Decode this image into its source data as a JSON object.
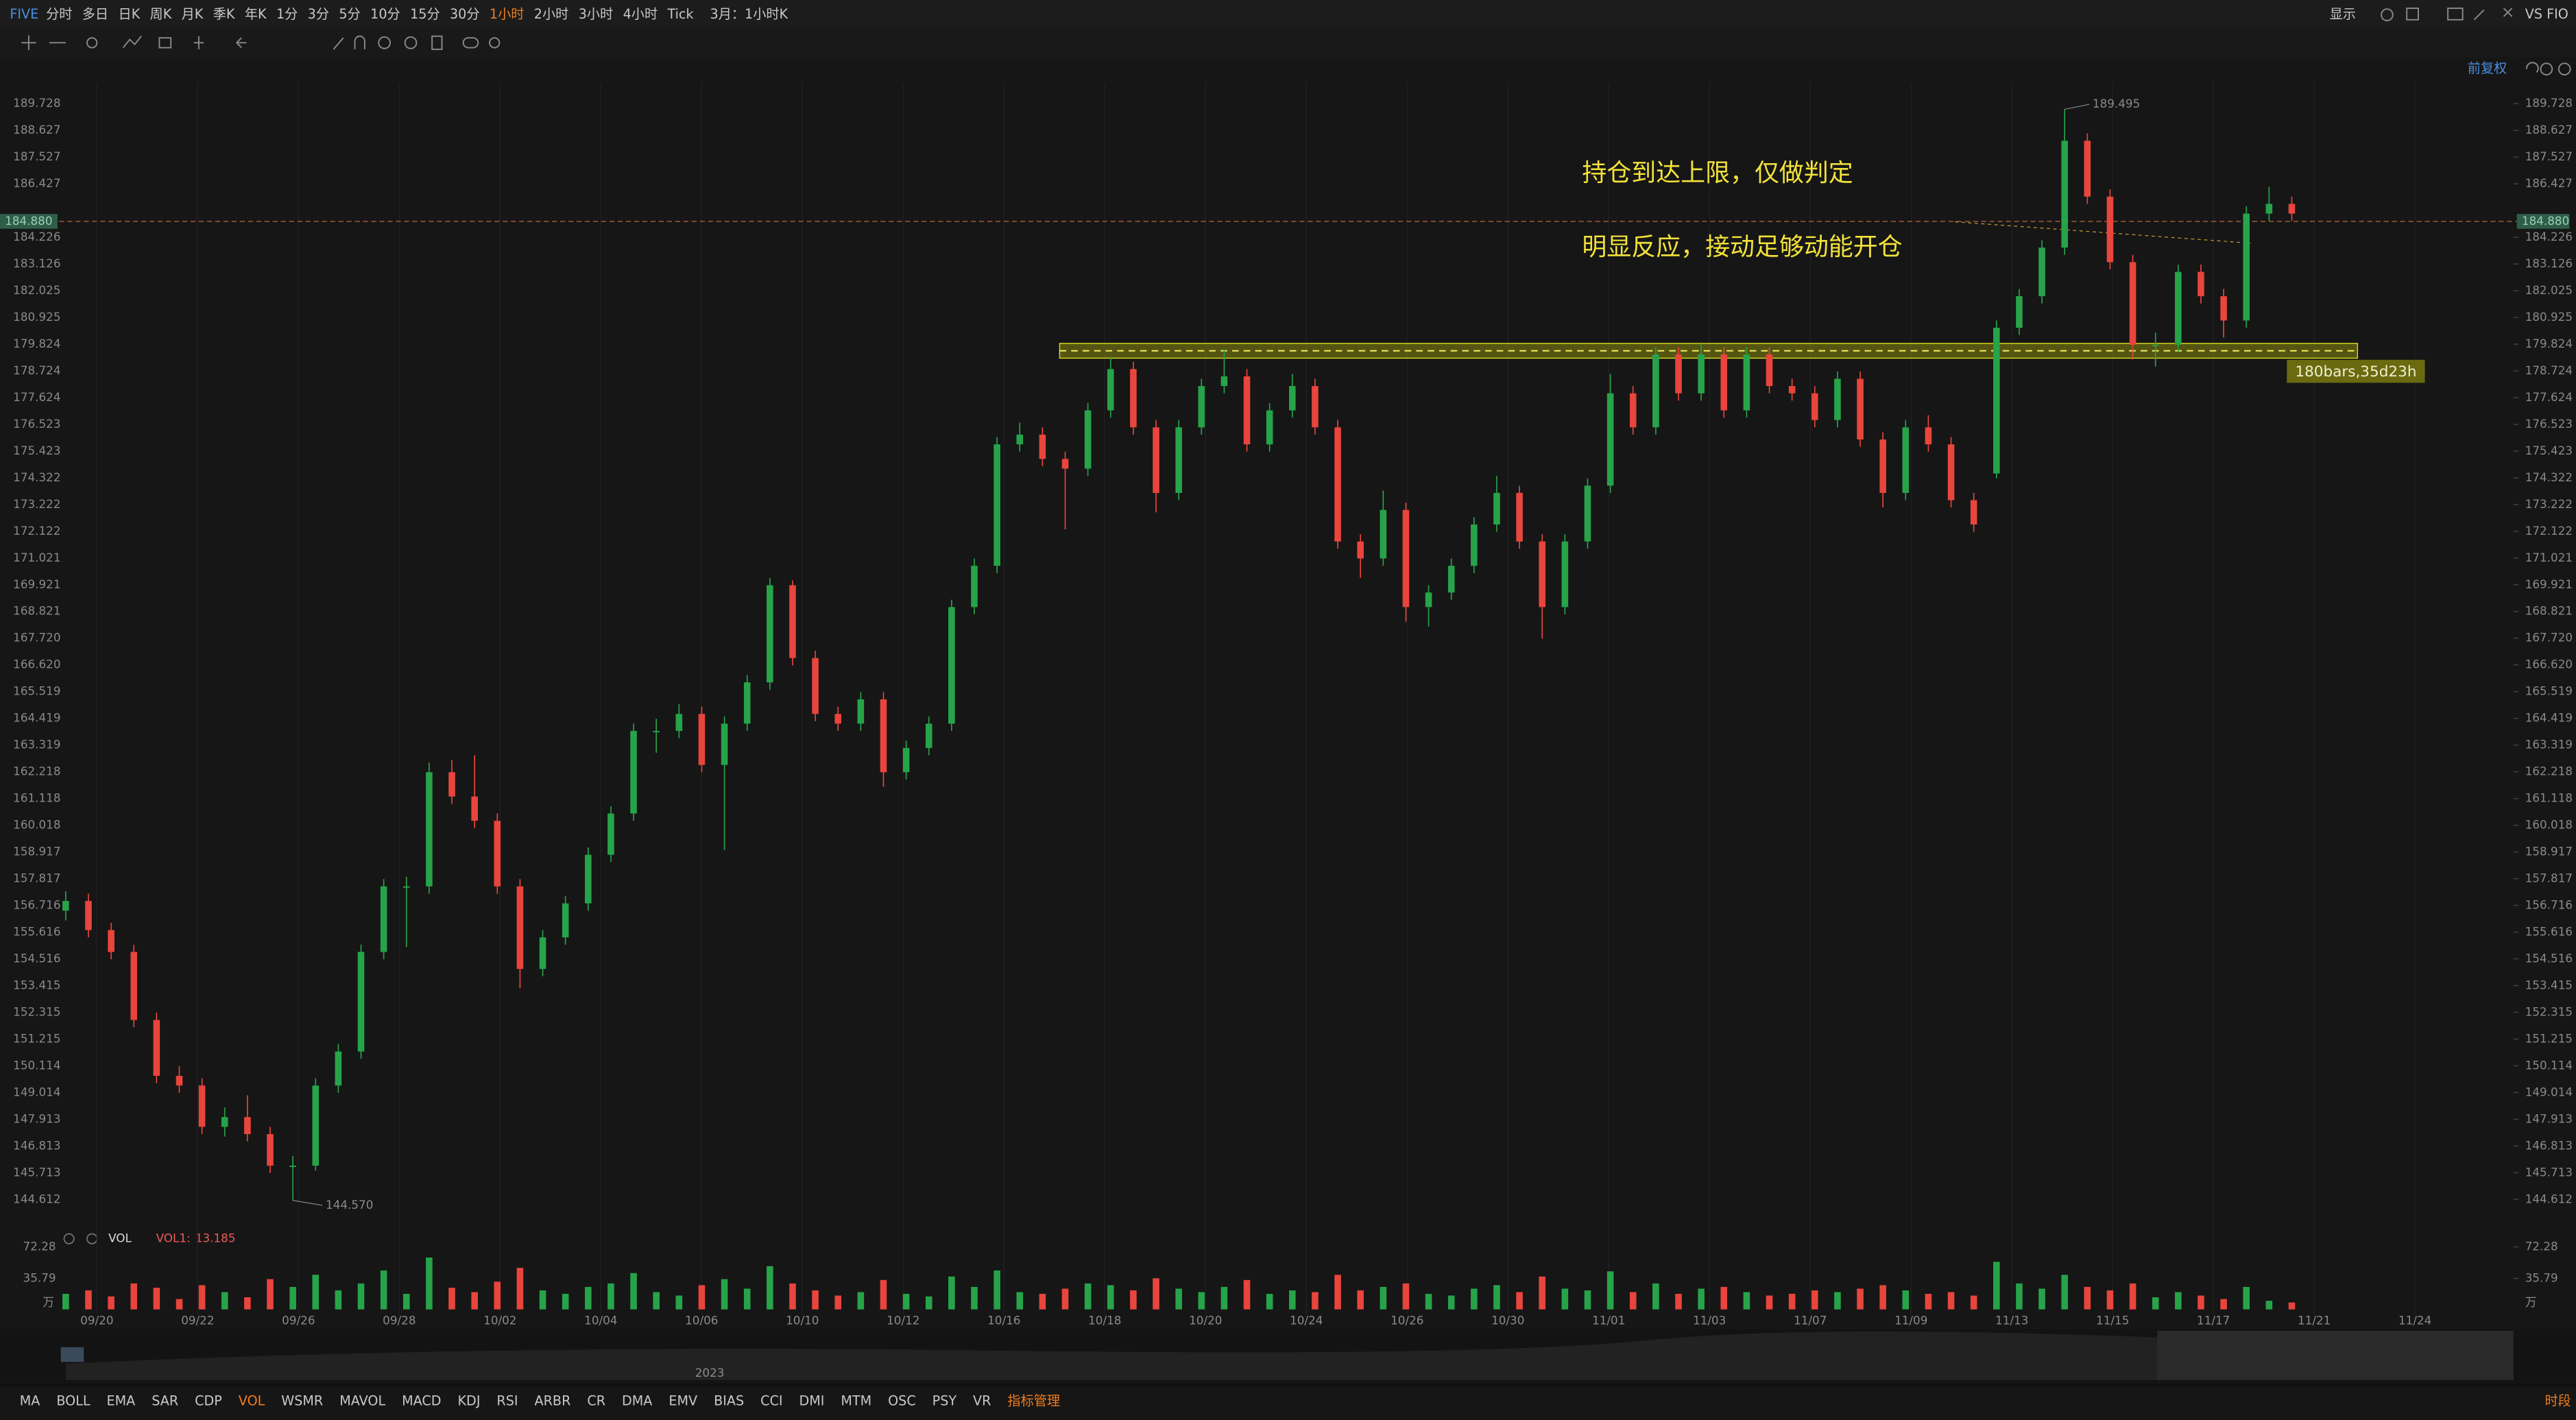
{
  "toolbar": {
    "symbol": "FIVE",
    "periods": [
      "分时",
      "多日",
      "日K",
      "周K",
      "月K",
      "季K",
      "年K",
      "1分",
      "3分",
      "5分",
      "10分",
      "15分",
      "30分",
      "1小时",
      "2小时",
      "3小时",
      "4小时",
      "Tick",
      "3月：1小时K"
    ],
    "display": "显示",
    "vs": "VS FIO"
  },
  "adjust": "前复权",
  "chart_data": {
    "type": "candlestick",
    "up_color": "#27a34a",
    "down_color": "#e8453c",
    "ylim": [
      143.6,
      190.95
    ],
    "yticks": [
      189.728,
      188.627,
      187.527,
      186.427,
      184.226,
      183.126,
      182.025,
      180.925,
      179.824,
      178.724,
      177.624,
      176.523,
      175.423,
      174.322,
      173.222,
      172.122,
      171.021,
      169.921,
      168.821,
      {
        "value": 167.72,
        "label": "167.720"
      },
      {
        "value": 166.62,
        "label": "166.620"
      },
      165.519,
      164.419,
      163.319,
      162.218,
      161.118,
      160.018,
      158.917,
      157.817,
      156.716,
      155.616,
      154.516,
      153.415,
      152.315,
      151.215,
      150.114,
      149.014,
      147.913,
      146.813,
      145.713,
      144.612
    ],
    "x_labels": [
      "09/20",
      "09/22",
      "09/26",
      "09/28",
      "10/02",
      "10/04",
      "10/06",
      "10/10",
      "10/12",
      "10/16",
      "10/18",
      "10/20",
      "10/24",
      "10/26",
      "10/30",
      "11/01",
      "11/03",
      "11/07",
      "11/09",
      "11/13",
      "11/15",
      "11/17",
      "11/21",
      "11/24"
    ],
    "ohlc": [
      [
        156.5,
        157.3,
        156.1,
        156.9
      ],
      [
        156.9,
        157.2,
        155.4,
        155.7
      ],
      [
        155.7,
        156.0,
        154.5,
        154.8
      ],
      [
        154.8,
        155.1,
        151.7,
        152.0
      ],
      [
        152.0,
        152.3,
        149.4,
        149.7
      ],
      [
        149.7,
        150.1,
        149.0,
        149.3
      ],
      [
        149.3,
        149.6,
        147.3,
        147.6
      ],
      [
        147.6,
        148.4,
        147.2,
        148.0
      ],
      [
        148.0,
        148.9,
        147.0,
        147.3
      ],
      [
        147.3,
        147.6,
        145.7,
        146.0
      ],
      [
        146.0,
        146.4,
        144.57,
        146.0
      ],
      [
        146.0,
        149.6,
        145.8,
        149.3
      ],
      [
        149.3,
        151.0,
        149.0,
        150.7
      ],
      [
        150.7,
        155.1,
        150.4,
        154.8
      ],
      [
        154.8,
        157.8,
        154.5,
        157.5
      ],
      [
        157.5,
        157.9,
        155.0,
        157.5
      ],
      [
        157.5,
        162.6,
        157.2,
        162.2
      ],
      [
        162.2,
        162.7,
        160.9,
        161.2
      ],
      [
        161.2,
        162.9,
        159.9,
        160.2
      ],
      [
        160.2,
        160.5,
        157.2,
        157.5
      ],
      [
        157.5,
        157.8,
        153.3,
        154.1
      ],
      [
        154.1,
        155.7,
        153.8,
        155.4
      ],
      [
        155.4,
        157.1,
        155.1,
        156.8
      ],
      [
        156.8,
        159.1,
        156.5,
        158.8
      ],
      [
        158.8,
        160.8,
        158.5,
        160.5
      ],
      [
        160.5,
        164.2,
        160.2,
        163.9
      ],
      [
        163.9,
        164.4,
        163.0,
        163.9
      ],
      [
        163.9,
        165.0,
        163.6,
        164.6
      ],
      [
        164.6,
        164.9,
        162.2,
        162.5
      ],
      [
        162.5,
        164.5,
        159.0,
        164.2
      ],
      [
        164.2,
        166.2,
        163.9,
        165.9
      ],
      [
        165.9,
        170.2,
        165.6,
        169.9
      ],
      [
        169.9,
        170.1,
        166.6,
        166.9
      ],
      [
        166.9,
        167.2,
        164.3,
        164.6
      ],
      [
        164.6,
        164.9,
        163.9,
        164.2
      ],
      [
        164.2,
        165.5,
        163.9,
        165.2
      ],
      [
        165.2,
        165.5,
        161.6,
        162.2
      ],
      [
        162.2,
        163.5,
        161.9,
        163.2
      ],
      [
        163.2,
        164.5,
        162.9,
        164.2
      ],
      [
        164.2,
        169.3,
        163.9,
        169.0
      ],
      [
        169.0,
        171.0,
        168.7,
        170.7
      ],
      [
        170.7,
        176.0,
        170.4,
        175.7
      ],
      [
        175.7,
        176.6,
        175.4,
        176.1
      ],
      [
        176.1,
        176.4,
        174.8,
        175.1
      ],
      [
        175.1,
        175.4,
        172.2,
        174.7
      ],
      [
        174.7,
        177.4,
        174.4,
        177.1
      ],
      [
        177.1,
        179.3,
        176.8,
        178.8
      ],
      [
        178.8,
        179.1,
        176.1,
        176.4
      ],
      [
        176.4,
        176.7,
        172.9,
        173.7
      ],
      [
        173.7,
        176.7,
        173.4,
        176.4
      ],
      [
        176.4,
        178.4,
        176.1,
        178.1
      ],
      [
        178.1,
        179.6,
        177.8,
        178.5
      ],
      [
        178.5,
        178.8,
        175.4,
        175.7
      ],
      [
        175.7,
        177.4,
        175.4,
        177.1
      ],
      [
        177.1,
        178.6,
        176.8,
        178.1
      ],
      [
        178.1,
        178.4,
        176.1,
        176.4
      ],
      [
        176.4,
        176.7,
        171.4,
        171.7
      ],
      [
        171.7,
        172.0,
        170.2,
        171.0
      ],
      [
        171.0,
        173.8,
        170.7,
        173.0
      ],
      [
        173.0,
        173.3,
        168.4,
        169.0
      ],
      [
        169.0,
        169.9,
        168.2,
        169.6
      ],
      [
        169.6,
        171.0,
        169.3,
        170.7
      ],
      [
        170.7,
        172.7,
        170.4,
        172.4
      ],
      [
        172.4,
        174.4,
        172.1,
        173.7
      ],
      [
        173.7,
        174.0,
        171.4,
        171.7
      ],
      [
        171.7,
        172.0,
        167.7,
        169.0
      ],
      [
        169.0,
        172.0,
        168.7,
        171.7
      ],
      [
        171.7,
        174.3,
        171.4,
        174.0
      ],
      [
        174.0,
        178.6,
        173.7,
        177.8
      ],
      [
        177.8,
        178.1,
        176.1,
        176.4
      ],
      [
        176.4,
        179.7,
        176.1,
        179.4
      ],
      [
        179.4,
        179.7,
        177.5,
        177.8
      ],
      [
        177.8,
        179.9,
        177.5,
        179.4
      ],
      [
        179.4,
        179.7,
        176.8,
        177.1
      ],
      [
        177.1,
        179.7,
        176.8,
        179.4
      ],
      [
        179.4,
        179.7,
        177.8,
        178.1
      ],
      [
        178.1,
        178.4,
        177.5,
        177.8
      ],
      [
        177.8,
        178.1,
        176.4,
        176.7
      ],
      [
        176.7,
        178.7,
        176.4,
        178.4
      ],
      [
        178.4,
        178.7,
        175.6,
        175.9
      ],
      [
        175.9,
        176.2,
        173.1,
        173.7
      ],
      [
        173.7,
        176.7,
        173.4,
        176.4
      ],
      [
        176.4,
        176.9,
        175.4,
        175.7
      ],
      [
        175.7,
        176.0,
        173.1,
        173.4
      ],
      [
        173.4,
        173.7,
        172.1,
        172.4
      ],
      [
        174.5,
        180.8,
        174.3,
        180.5
      ],
      [
        180.5,
        182.1,
        180.2,
        181.8
      ],
      [
        181.8,
        184.1,
        181.5,
        183.8
      ],
      [
        183.8,
        189.495,
        183.5,
        188.2
      ],
      [
        188.2,
        188.5,
        185.6,
        185.9
      ],
      [
        185.9,
        186.2,
        182.9,
        183.2
      ],
      [
        183.2,
        183.5,
        179.2,
        179.8
      ],
      [
        179.8,
        180.3,
        178.9,
        179.8
      ],
      [
        179.8,
        183.1,
        179.5,
        182.8
      ],
      [
        182.8,
        183.1,
        181.5,
        181.8
      ],
      [
        181.8,
        182.1,
        180.1,
        180.8
      ],
      [
        180.8,
        185.5,
        180.5,
        185.2
      ],
      [
        185.2,
        186.3,
        184.9,
        185.6
      ],
      [
        185.6,
        185.9,
        184.9,
        185.2
      ]
    ],
    "high_label": 189.495,
    "low_label": {
      "value": 144.57,
      "label": "144.570"
    },
    "current_price": {
      "value": 184.88,
      "label": "184.880"
    },
    "annotations": [
      "持仓到达上限，仅做判定",
      "明显反应，接动足够动能开仓"
    ],
    "range_label": "180bars,35d23h",
    "volume": {
      "name": "VOL",
      "label": "VOL1:",
      "last": 13.185,
      "ylim": [
        0,
        76
      ],
      "yticks": [
        72.28,
        35.79
      ],
      "unit": "万",
      "values": [
        18,
        22,
        15,
        30,
        25,
        12,
        28,
        20,
        14,
        35,
        26,
        40,
        22,
        30,
        45,
        18,
        60,
        25,
        20,
        32,
        48,
        22,
        18,
        26,
        30,
        42,
        20,
        16,
        28,
        35,
        24,
        50,
        30,
        22,
        16,
        20,
        34,
        18,
        15,
        38,
        26,
        45,
        20,
        18,
        24,
        30,
        28,
        22,
        36,
        24,
        20,
        26,
        34,
        18,
        22,
        20,
        40,
        22,
        26,
        30,
        18,
        16,
        24,
        28,
        20,
        38,
        24,
        22,
        44,
        20,
        30,
        18,
        24,
        26,
        20,
        16,
        18,
        22,
        20,
        24,
        28,
        22,
        18,
        20,
        16,
        55,
        30,
        24,
        40,
        26,
        22,
        30,
        14,
        20,
        16,
        12,
        26,
        10,
        8
      ]
    }
  },
  "indicators": [
    "MA",
    "BOLL",
    "EMA",
    "SAR",
    "CDP",
    "VOL",
    "WSMR",
    "MAVOL",
    "MACD",
    "KDJ",
    "RSI",
    "ARBR",
    "CR",
    "DMA",
    "EMV",
    "BIAS",
    "CCI",
    "DMI",
    "MTM",
    "OSC",
    "PSY",
    "VR",
    "指标管理"
  ],
  "session": "时段",
  "navigator_year": "2023"
}
